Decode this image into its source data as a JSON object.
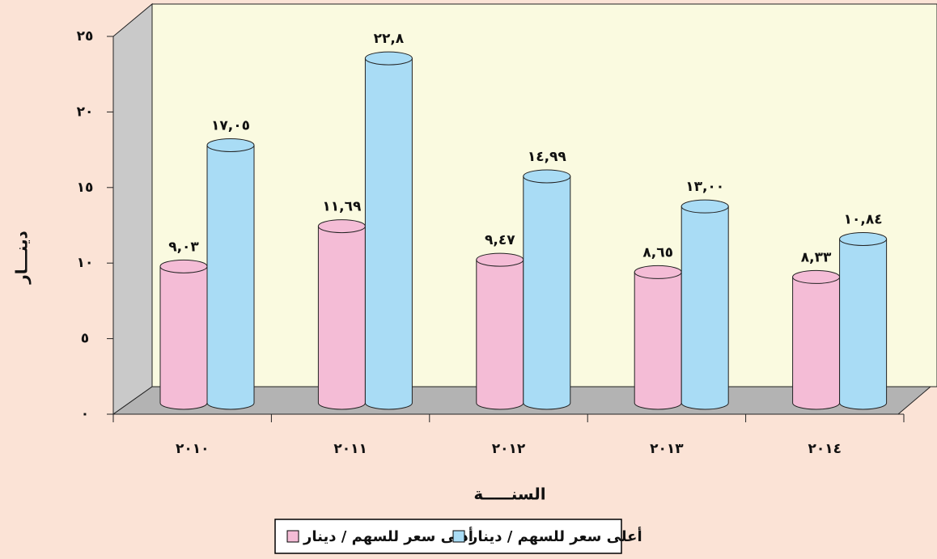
{
  "chart_data": {
    "type": "bar3d",
    "y_label": "دينـــار",
    "x_label": "السنـــــة",
    "categories": [
      "٢٠١٠",
      "٢٠١١",
      "٢٠١٢",
      "٢٠١٣",
      "٢٠١٤"
    ],
    "series": [
      {
        "name": "أدنى سعر للسهم / دينار",
        "color": "#f4bcd6",
        "values": [
          9.03,
          11.69,
          9.47,
          8.65,
          8.33
        ],
        "value_labels": [
          "٩,٠٣",
          "١١,٦٩",
          "٩,٤٧",
          "٨,٦٥",
          "٨,٣٣"
        ]
      },
      {
        "name": "أعلى سعر للسهم / دينار",
        "color": "#a9dcf5",
        "values": [
          17.05,
          22.8,
          14.99,
          13.0,
          10.84
        ],
        "value_labels": [
          "١٧,٠٥",
          "٢٢,٨",
          "١٤,٩٩",
          "١٣,٠٠",
          "١٠,٨٤"
        ]
      }
    ],
    "ylim": [
      0,
      25
    ],
    "yticks": [
      {
        "value": 0,
        "label": "٠"
      },
      {
        "value": 5,
        "label": "٥"
      },
      {
        "value": 10,
        "label": "١٠"
      },
      {
        "value": 15,
        "label": "١٥"
      },
      {
        "value": 20,
        "label": "٢٠"
      },
      {
        "value": 25,
        "label": "٢٥"
      }
    ]
  }
}
